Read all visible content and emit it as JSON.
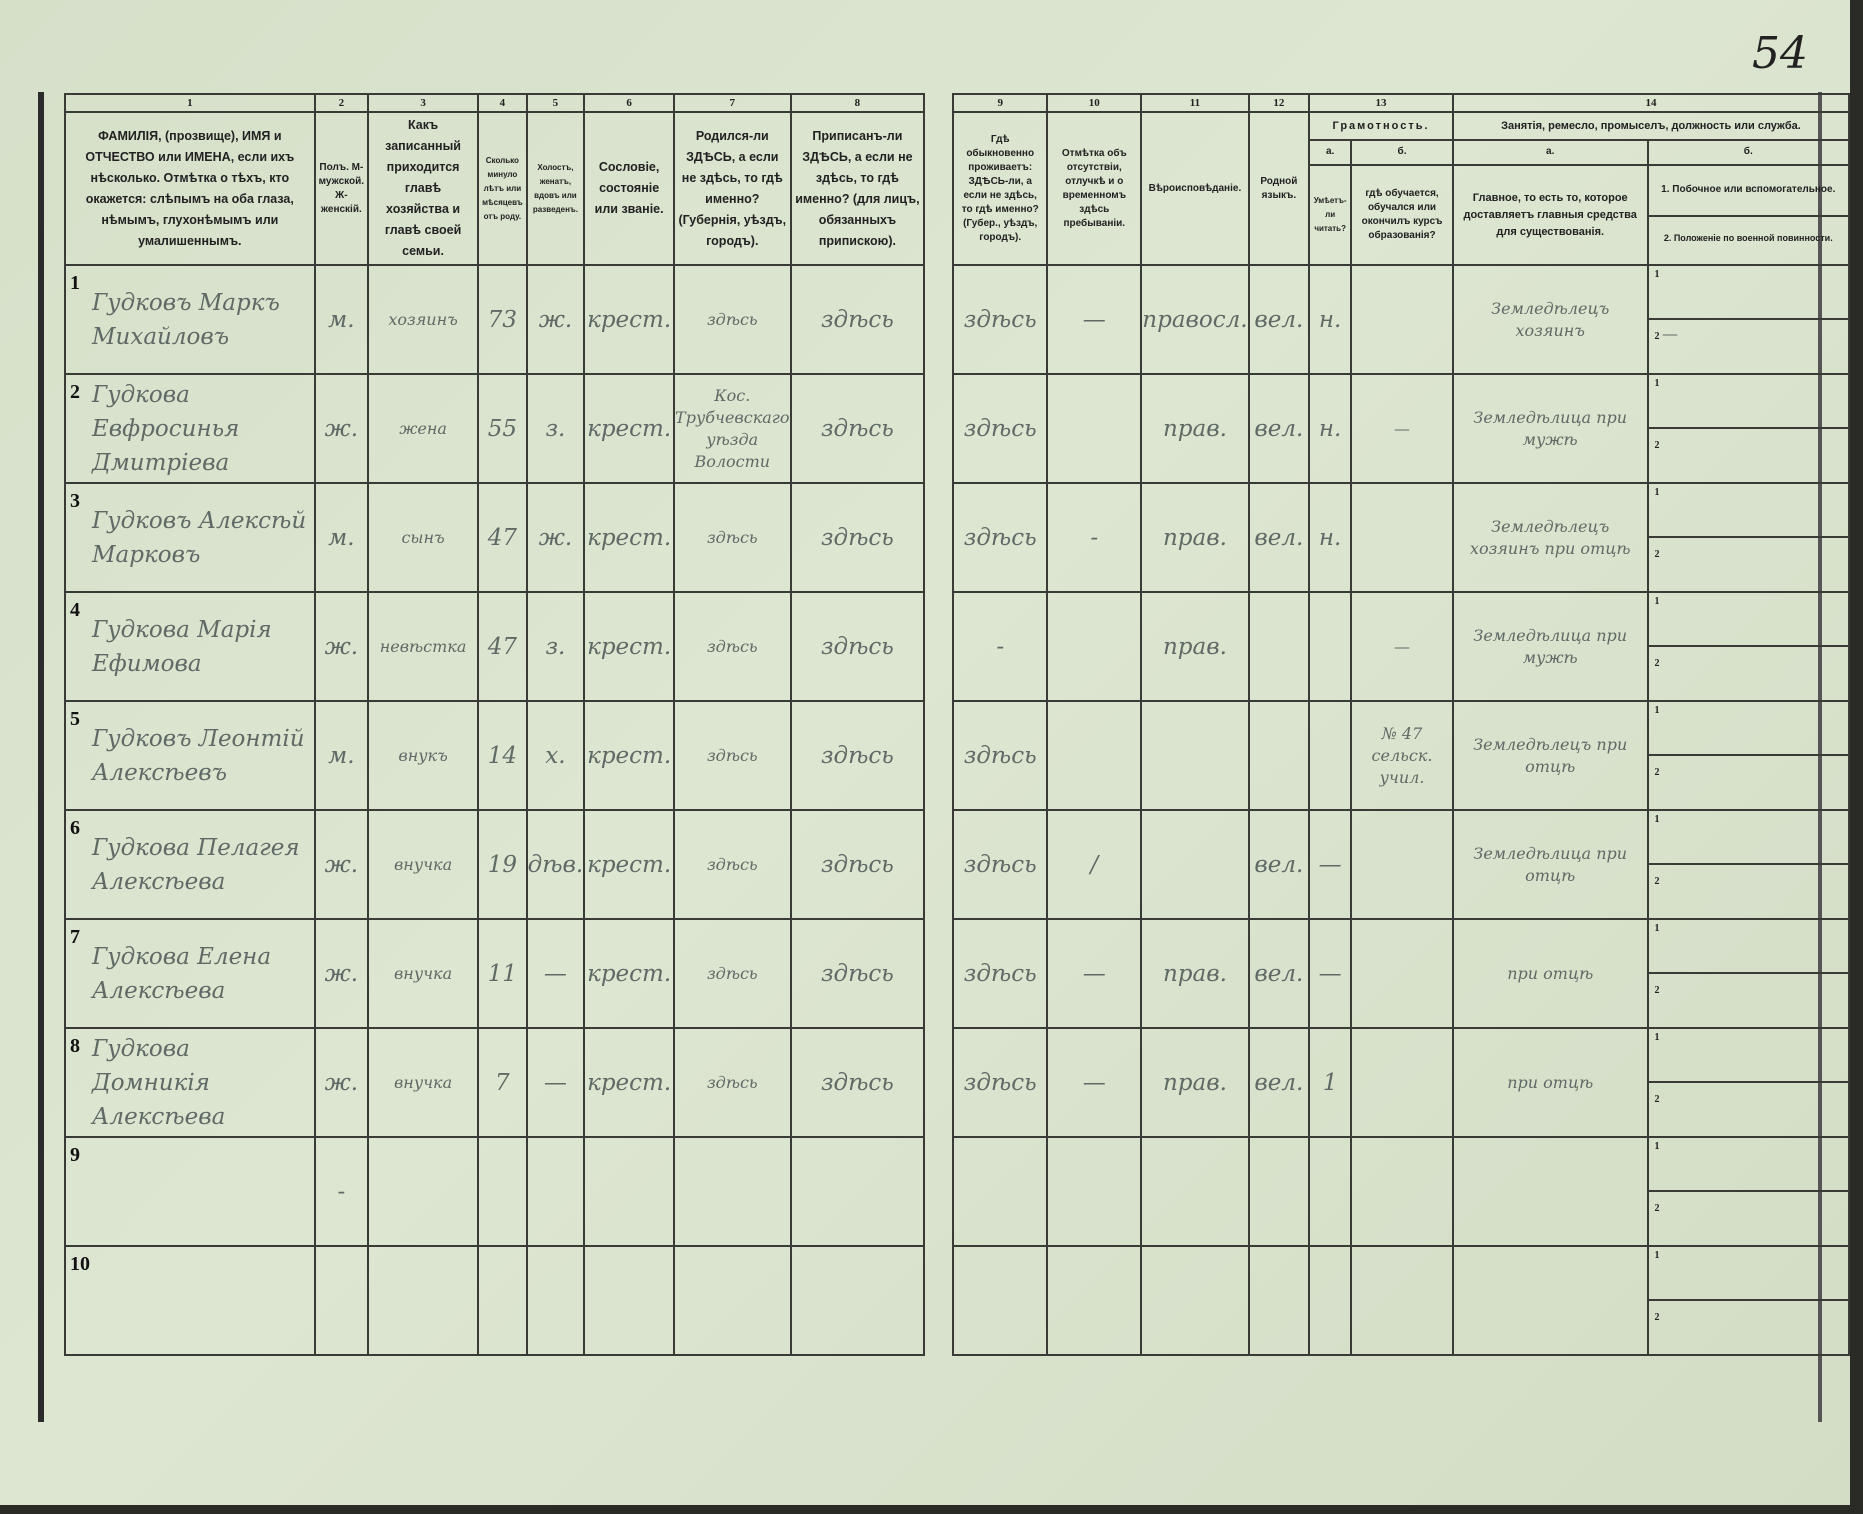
{
  "page_number": "54",
  "columns": {
    "n1": "1",
    "n2": "2",
    "n3": "3",
    "n4": "4",
    "n5": "5",
    "n6": "6",
    "n7": "7",
    "n8": "8",
    "n9": "9",
    "n10": "10",
    "n11": "11",
    "n12": "12",
    "n13": "13",
    "n14": "14",
    "c1": "ФАМИЛІЯ, (прозвище), ИМЯ и ОТЧЕСТВО или ИМЕНА, если ихъ нѣсколько. Отмѣтка о тѣхъ, кто окажется: слѣпымъ на оба глаза, нѣмымъ, глухонѣмымъ или умалишеннымъ.",
    "c2": "Полъ. М-мужской. Ж-женскій.",
    "c3": "Какъ записанный приходится главѣ хозяйства и главѣ своей семьи.",
    "c4": "Сколько минуло лѣтъ или мѣсяцевъ отъ роду.",
    "c5": "Холостъ, женатъ, вдовъ или разведенъ.",
    "c6": "Сословіе, состояніе или званіе.",
    "c7": "Родился-ли ЗДѢСЬ, а если не здѣсь, то гдѣ именно? (Губернія, уѣздъ, городъ).",
    "c8": "Приписанъ-ли ЗДѢСЬ, а если не здѣсь, то гдѣ именно? (для лицъ, обязанныхъ припискою).",
    "c9": "Гдѣ обыкновенно проживаетъ: ЗДѢСЬ-ли, а если не здѣсь, то гдѣ именно? (Губер., уѣздъ, городъ).",
    "c10": "Отмѣтка объ отсутствіи, отлучкѣ и о временномъ здѣсь пребываніи.",
    "c11": "Вѣроисповѣданіе.",
    "c12": "Родной языкъ.",
    "c13": "Грамотность.",
    "c13a": "а.",
    "c13b": "б.",
    "c13a_q": "Умѣетъ-ли читать?",
    "c13b_q": "гдѣ обучается, обучался или окончилъ курсъ образованія?",
    "c14": "Занятія, ремесло, промыселъ, должность или служба.",
    "c14a": "а.",
    "c14b": "б.",
    "c14a_q": "Главное, то есть то, которое доставляетъ главныя средства для существованія.",
    "c14b_1": "1. Побочное или вспомогательное.",
    "c14b_2": "2. Положеніе по военной повинности."
  },
  "rows": [
    {
      "no": "1",
      "name": "Гудковъ Маркъ Михайловъ",
      "sex": "м.",
      "relation": "хозяинъ",
      "age": "73",
      "marital": "ж.",
      "estate": "крест.",
      "born": "здѣсь",
      "registered": "здѣсь",
      "residence": "здѣсь",
      "absence": "—",
      "religion": "правосл.",
      "language": "вел.",
      "literate": "н.",
      "education": "",
      "occupation": "Земледѣлецъ хозяинъ",
      "side_1": "1",
      "side_2": "2",
      "side_2_value": "—"
    },
    {
      "no": "2",
      "name": "Гудкова Евфросинья Дмитріева",
      "sex": "ж.",
      "relation": "жена",
      "age": "55",
      "marital": "з.",
      "estate": "крест.",
      "born": "Кос. Трубчевскаго уѣзда Волости",
      "registered": "здѣсь",
      "residence": "здѣсь",
      "absence": "",
      "religion": "прав.",
      "language": "вел.",
      "literate": "н.",
      "education": "—",
      "occupation": "Земледѣлица при мужѣ",
      "side_1": "1",
      "side_2": "2",
      "side_2_value": ""
    },
    {
      "no": "3",
      "name": "Гудковъ Алексѣй Марковъ",
      "sex": "м.",
      "relation": "сынъ",
      "age": "47",
      "marital": "ж.",
      "estate": "крест.",
      "born": "здѣсь",
      "registered": "здѣсь",
      "residence": "здѣсь",
      "absence": "-",
      "religion": "прав.",
      "language": "вел.",
      "literate": "н.",
      "education": "",
      "occupation": "Земледѣлецъ хозяинъ при отцѣ",
      "side_1": "1",
      "side_2": "2",
      "side_2_value": ""
    },
    {
      "no": "4",
      "name": "Гудкова Марія Ефимова",
      "sex": "ж.",
      "relation": "невѣстка",
      "age": "47",
      "marital": "з.",
      "estate": "крест.",
      "born": "здѣсь",
      "registered": "здѣсь",
      "residence": "-",
      "absence": "",
      "religion": "прав.",
      "language": "",
      "literate": "",
      "education": "—",
      "occupation": "Земледѣлица при мужѣ",
      "side_1": "1",
      "side_2": "2",
      "side_2_value": ""
    },
    {
      "no": "5",
      "name": "Гудковъ Леонтій Алексѣевъ",
      "sex": "м.",
      "relation": "внукъ",
      "age": "14",
      "marital": "х.",
      "estate": "крест.",
      "born": "здѣсь",
      "registered": "здѣсь",
      "residence": "здѣсь",
      "absence": "",
      "religion": "",
      "language": "",
      "literate": "",
      "education": "№ 47 сельск. учил.",
      "occupation": "Земледѣлецъ при отцѣ",
      "side_1": "1",
      "side_2": "2",
      "side_2_value": ""
    },
    {
      "no": "6",
      "name": "Гудкова Пелагея Алексѣева",
      "sex": "ж.",
      "relation": "внучка",
      "age": "19",
      "marital": "дѣв.",
      "estate": "крест.",
      "born": "здѣсь",
      "registered": "здѣсь",
      "residence": "здѣсь",
      "absence": "/",
      "religion": "",
      "language": "вел.",
      "literate": "—",
      "education": "",
      "occupation": "Земледѣлица при отцѣ",
      "side_1": "1",
      "side_2": "2",
      "side_2_value": ""
    },
    {
      "no": "7",
      "name": "Гудкова Елена Алексѣева",
      "sex": "ж.",
      "relation": "внучка",
      "age": "11",
      "marital": "—",
      "estate": "крест.",
      "born": "здѣсь",
      "registered": "здѣсь",
      "residence": "здѣсь",
      "absence": "—",
      "religion": "прав.",
      "language": "вел.",
      "literate": "—",
      "education": "",
      "occupation": "при отцѣ",
      "side_1": "1",
      "side_2": "2",
      "side_2_value": ""
    },
    {
      "no": "8",
      "name": "Гудкова Домникія Алексѣева",
      "sex": "ж.",
      "relation": "внучка",
      "age": "7",
      "marital": "—",
      "estate": "крест.",
      "born": "здѣсь",
      "registered": "здѣсь",
      "residence": "здѣсь",
      "absence": "—",
      "religion": "прав.",
      "language": "вел.",
      "literate": "1",
      "education": "",
      "occupation": "при отцѣ",
      "side_1": "1",
      "side_2": "2",
      "side_2_value": ""
    },
    {
      "no": "9",
      "name": "",
      "sex": "-",
      "relation": "",
      "age": "",
      "marital": "",
      "estate": "",
      "born": "",
      "registered": "",
      "residence": "",
      "absence": "",
      "religion": "",
      "language": "",
      "literate": "",
      "education": "",
      "occupation": "",
      "side_1": "1",
      "side_2": "2",
      "side_2_value": ""
    },
    {
      "no": "10",
      "name": "",
      "sex": "",
      "relation": "",
      "age": "",
      "marital": "",
      "estate": "",
      "born": "",
      "registered": "",
      "residence": "",
      "absence": "",
      "religion": "",
      "language": "",
      "literate": "",
      "education": "",
      "occupation": "",
      "side_1": "1",
      "side_2": "2",
      "side_2_value": ""
    }
  ]
}
